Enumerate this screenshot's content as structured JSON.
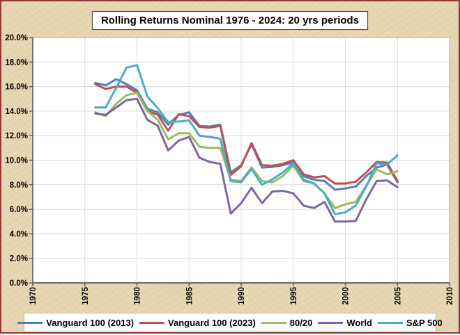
{
  "title": "Rolling Returns Nominal 1976 - 2024: 20 yrs periods",
  "colors": {
    "frame_border": "#8e3b36",
    "background": "#e8d9b4",
    "plot_background": "#ffffff",
    "gridline": "#dadada",
    "axis": "#595959",
    "plot_border": "#ababab"
  },
  "chart_data": {
    "type": "line",
    "x": [
      1976,
      1977,
      1978,
      1979,
      1980,
      1981,
      1982,
      1983,
      1984,
      1985,
      1986,
      1987,
      1988,
      1989,
      1990,
      1991,
      1992,
      1993,
      1994,
      1995,
      1996,
      1997,
      1998,
      1999,
      2000,
      2001,
      2002,
      2003,
      2004,
      2005
    ],
    "series": [
      {
        "name": "Vanguard 100 (2013)",
        "color": "#4f81bd",
        "values": [
          16.3,
          16.1,
          16.6,
          16.2,
          15.7,
          14.2,
          13.9,
          12.9,
          13.7,
          13.9,
          12.8,
          12.75,
          12.9,
          9.0,
          9.6,
          11.3,
          9.4,
          9.45,
          9.6,
          9.8,
          8.7,
          8.4,
          8.3,
          7.6,
          7.7,
          7.85,
          8.7,
          9.4,
          9.65,
          8.2
        ]
      },
      {
        "name": "Vanguard 100 (2023)",
        "color": "#c0504d",
        "values": [
          16.2,
          15.8,
          16.0,
          16.0,
          15.5,
          14.0,
          13.7,
          12.4,
          13.75,
          13.6,
          12.7,
          12.65,
          12.8,
          8.8,
          9.5,
          11.4,
          9.6,
          9.55,
          9.7,
          10.0,
          8.85,
          8.6,
          8.7,
          8.1,
          8.1,
          8.25,
          9.0,
          9.85,
          9.8,
          8.3
        ]
      },
      {
        "name": "80/20",
        "color": "#9bbb59",
        "values": [
          13.9,
          13.6,
          14.6,
          15.3,
          15.5,
          14.0,
          13.3,
          11.7,
          12.2,
          12.2,
          11.1,
          11.0,
          11.0,
          8.4,
          8.3,
          9.4,
          8.3,
          8.2,
          8.7,
          9.55,
          8.3,
          8.1,
          7.3,
          6.1,
          6.4,
          6.6,
          7.9,
          9.25,
          8.85,
          9.1
        ]
      },
      {
        "name": "World",
        "color": "#8064a2",
        "values": [
          13.8,
          13.7,
          14.3,
          14.9,
          15.0,
          13.3,
          12.8,
          10.8,
          11.6,
          11.9,
          10.2,
          9.85,
          9.7,
          5.65,
          6.5,
          7.75,
          6.5,
          7.45,
          7.5,
          7.3,
          6.3,
          6.1,
          6.6,
          5.0,
          5.0,
          5.05,
          6.8,
          8.3,
          8.35,
          7.8
        ]
      },
      {
        "name": "S&P 500",
        "color": "#4bacc6",
        "values": [
          14.3,
          14.3,
          15.9,
          17.55,
          17.75,
          15.2,
          14.25,
          13.1,
          13.15,
          13.25,
          12.0,
          11.9,
          11.75,
          8.3,
          8.2,
          9.3,
          8.0,
          8.45,
          9.0,
          9.75,
          8.4,
          8.1,
          7.3,
          5.6,
          5.75,
          6.3,
          7.85,
          9.75,
          9.65,
          10.4
        ]
      }
    ],
    "xlim": [
      1970,
      2010
    ],
    "ylim": [
      0,
      20
    ],
    "x_tick_labels": [
      "1970",
      "1975",
      "1980",
      "1985",
      "1990",
      "1995",
      "2000",
      "2005",
      "2010"
    ],
    "y_tick_labels": [
      "0.0%",
      "2.0%",
      "4.0%",
      "6.0%",
      "8.0%",
      "10.0%",
      "12.0%",
      "14.0%",
      "16.0%",
      "18.0%",
      "20.0%"
    ],
    "grid": true,
    "legend_position": "bottom"
  }
}
